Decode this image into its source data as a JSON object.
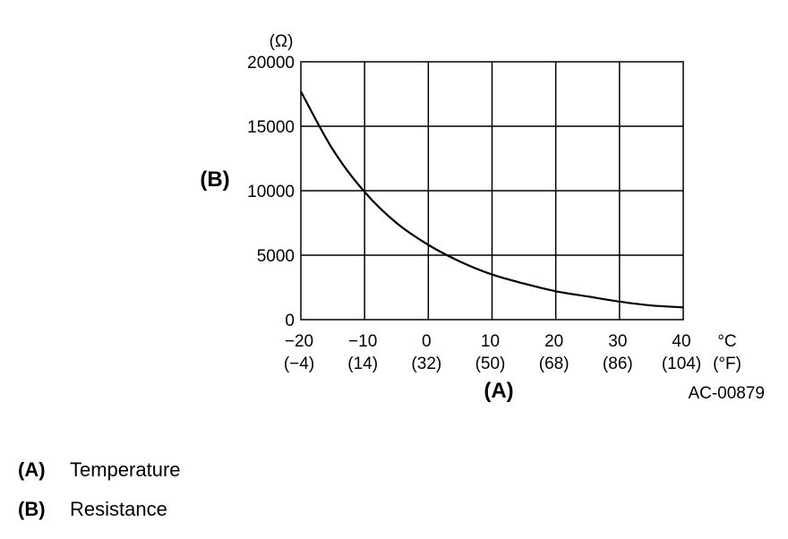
{
  "chart_data": {
    "type": "line",
    "y_unit": "(Ω)",
    "y_axis_letter": "(B)",
    "x_axis_letter": "(A)",
    "x_unit_c": "°C",
    "x_unit_f": "(°F)",
    "x_ticks_c": [
      "−20",
      "−10",
      "0",
      "10",
      "20",
      "30",
      "40"
    ],
    "x_ticks_f": [
      "(−4)",
      "(14)",
      "(32)",
      "(50)",
      "(68)",
      "(86)",
      "(104)"
    ],
    "y_ticks": [
      "0",
      "5000",
      "10000",
      "15000",
      "20000"
    ],
    "xlim": [
      -20,
      40
    ],
    "ylim": [
      0,
      20000
    ],
    "grid": true,
    "series": [
      {
        "x": [
          -20,
          -15,
          -10,
          -5,
          0,
          5,
          10,
          15,
          20,
          25,
          30,
          35,
          40
        ],
        "y": [
          17700,
          13200,
          9900,
          7500,
          5800,
          4500,
          3500,
          2800,
          2200,
          1800,
          1400,
          1100,
          950
        ]
      }
    ],
    "figure_id": "AC-00879"
  },
  "legend": [
    {
      "key": "(A)",
      "label": "Temperature"
    },
    {
      "key": "(B)",
      "label": "Resistance"
    }
  ]
}
